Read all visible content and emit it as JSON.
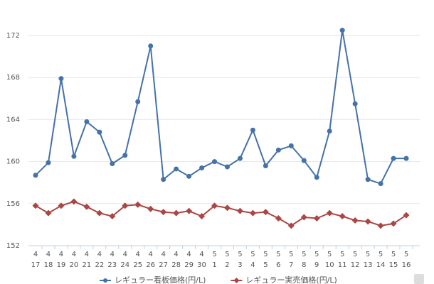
{
  "chart_data": {
    "type": "line",
    "categories": [
      [
        "4",
        "17"
      ],
      [
        "4",
        "18"
      ],
      [
        "4",
        "19"
      ],
      [
        "4",
        "20"
      ],
      [
        "4",
        "21"
      ],
      [
        "4",
        "22"
      ],
      [
        "4",
        "23"
      ],
      [
        "4",
        "24"
      ],
      [
        "4",
        "25"
      ],
      [
        "4",
        "26"
      ],
      [
        "4",
        "27"
      ],
      [
        "4",
        "28"
      ],
      [
        "4",
        "29"
      ],
      [
        "4",
        "30"
      ],
      [
        "5",
        "1"
      ],
      [
        "5",
        "2"
      ],
      [
        "5",
        "3"
      ],
      [
        "5",
        "4"
      ],
      [
        "5",
        "5"
      ],
      [
        "5",
        "6"
      ],
      [
        "5",
        "7"
      ],
      [
        "5",
        "8"
      ],
      [
        "5",
        "9"
      ],
      [
        "5",
        "10"
      ],
      [
        "5",
        "11"
      ],
      [
        "5",
        "12"
      ],
      [
        "5",
        "13"
      ],
      [
        "5",
        "14"
      ],
      [
        "5",
        "15"
      ],
      [
        "5",
        "16"
      ]
    ],
    "series": [
      {
        "name": "レギュラー看板価格(円/L)",
        "color": "#4572a7",
        "marker": "circle",
        "values": [
          158.7,
          159.9,
          167.9,
          160.5,
          163.8,
          162.8,
          159.8,
          160.6,
          165.7,
          171.0,
          158.3,
          159.3,
          158.6,
          159.4,
          160.0,
          159.5,
          160.3,
          163.0,
          159.6,
          161.1,
          161.5,
          160.1,
          158.5,
          162.9,
          172.5,
          165.5,
          158.3,
          157.9,
          160.3,
          160.3
        ]
      },
      {
        "name": "レギュラー実売価格(円/L)",
        "color": "#aa4643",
        "marker": "diamond",
        "values": [
          155.8,
          155.1,
          155.8,
          156.2,
          155.7,
          155.1,
          154.8,
          155.8,
          155.9,
          155.5,
          155.2,
          155.1,
          155.3,
          154.8,
          155.8,
          155.6,
          155.3,
          155.1,
          155.2,
          154.6,
          153.9,
          154.7,
          154.6,
          155.1,
          154.8,
          154.4,
          154.3,
          153.9,
          154.1,
          154.9
        ]
      }
    ],
    "ylim": [
      152,
      174
    ],
    "yticks": [
      152,
      156,
      160,
      164,
      168,
      172
    ],
    "grid": true
  }
}
